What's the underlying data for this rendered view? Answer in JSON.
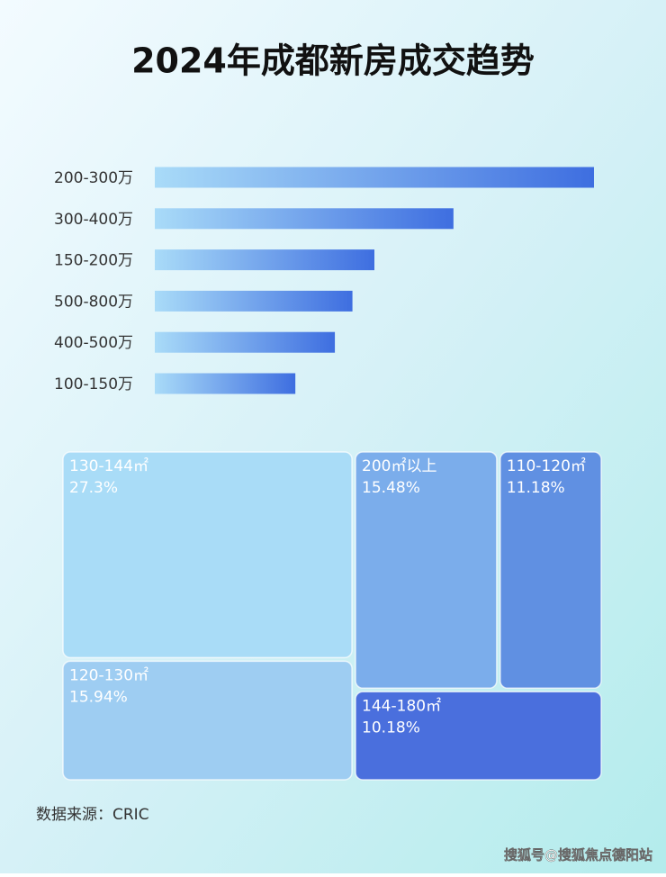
{
  "title": "2024年成都新房成交趋势",
  "chart_data": [
    {
      "type": "bar",
      "orientation": "horizontal",
      "categories": [
        "200-300万",
        "300-400万",
        "150-200万",
        "500-800万",
        "400-500万",
        "100-150万"
      ],
      "values": [
        100,
        68,
        50,
        45,
        41,
        32
      ],
      "xlim": [
        0,
        100
      ],
      "colors": [
        "#a9dbf8",
        "#3e6ee0"
      ]
    },
    {
      "type": "treemap",
      "categories": [
        "130-144㎡",
        "200㎡以上",
        "110-120㎡",
        "120-130㎡",
        "144-180㎡"
      ],
      "values": [
        27.3,
        15.48,
        11.18,
        15.94,
        10.18
      ],
      "value_labels": [
        "27.3%",
        "15.48%",
        "11.18%",
        "15.94%",
        "10.18%"
      ],
      "colors": [
        "#a9dcf7",
        "#7badeb",
        "#6090e2",
        "#9ecdf2",
        "#4a6fdd"
      ]
    }
  ],
  "source": "数据来源：CRIC",
  "watermark": "搜狐号@搜狐焦点德阳站"
}
